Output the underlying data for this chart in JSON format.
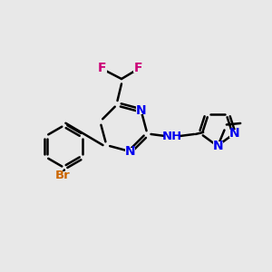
{
  "background_color": "#e8e8e8",
  "bond_color": "#000000",
  "nitrogen_color": "#0000ee",
  "bromine_color": "#cc6600",
  "fluorine_color": "#cc0077",
  "line_width": 1.8,
  "dbo": 0.055,
  "figsize": [
    3.0,
    3.0
  ],
  "dpi": 100,
  "xlim": [
    0,
    10
  ],
  "ylim": [
    0,
    10
  ]
}
